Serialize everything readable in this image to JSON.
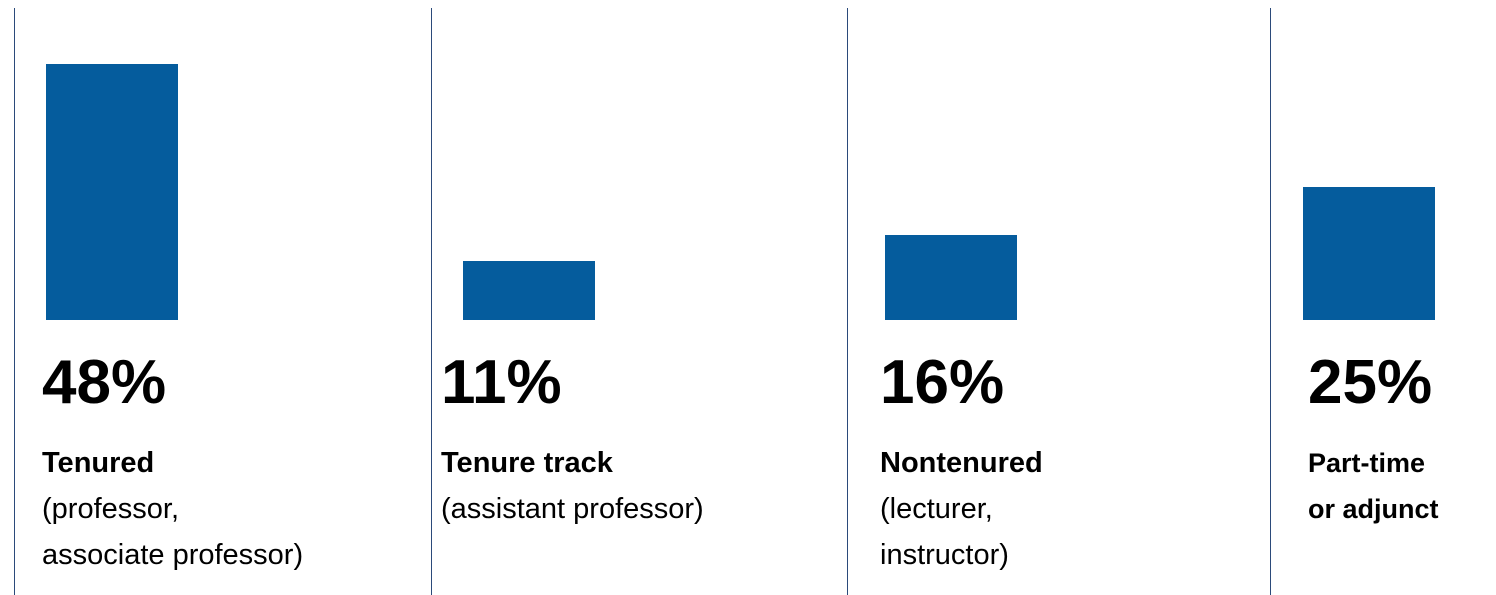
{
  "chart_data": {
    "type": "bar",
    "categories": [
      "Tenured",
      "Tenure track",
      "Nontenured",
      "Part-time\nor adjunct"
    ],
    "descriptions": [
      "(professor,\nassociate professor)",
      "(assistant professor)",
      "(lecturer,\ninstructor)",
      null
    ],
    "values": [
      48,
      11,
      16,
      25
    ],
    "value_labels": [
      "48%",
      "11%",
      "16%",
      "25%"
    ],
    "color": "#055c9d"
  }
}
